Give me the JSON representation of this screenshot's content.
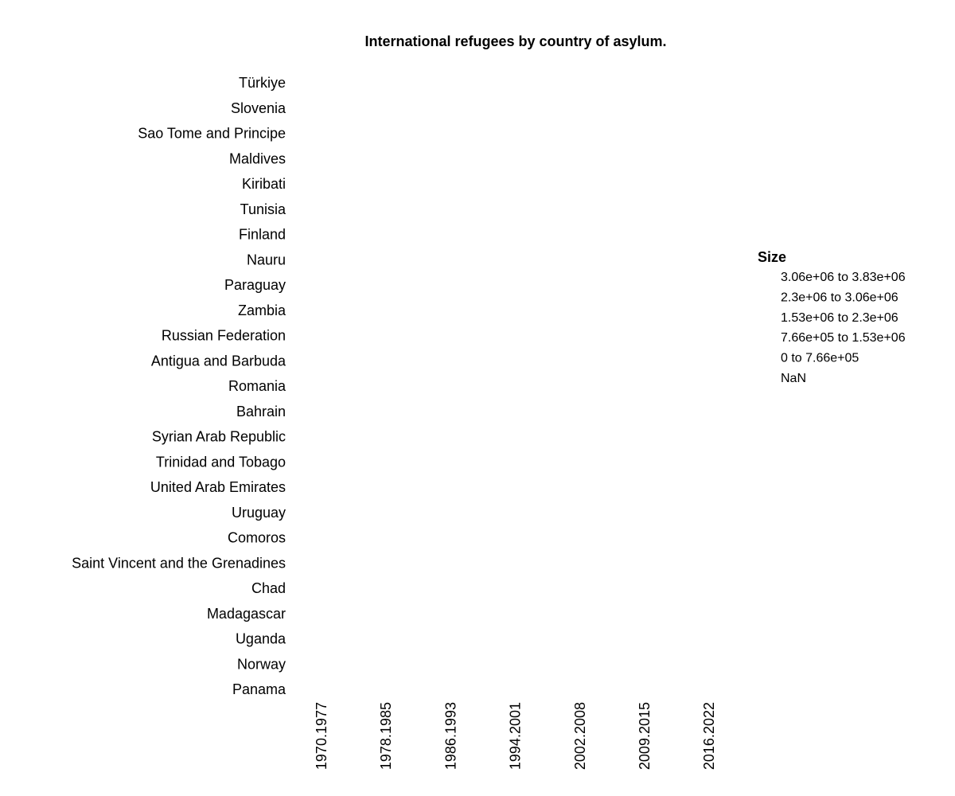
{
  "chart_data": {
    "type": "scatter",
    "title": "International refugees by country of asylum.",
    "xlabel": "",
    "ylabel": "",
    "categories": [
      "Türkiye",
      "Slovenia",
      "Sao Tome and Principe",
      "Maldives",
      "Kiribati",
      "Tunisia",
      "Finland",
      "Nauru",
      "Paraguay",
      "Zambia",
      "Russian Federation",
      "Antigua and Barbuda",
      "Romania",
      "Bahrain",
      "Syrian Arab Republic",
      "Trinidad and Tobago",
      "United Arab Emirates",
      "Uruguay",
      "Comoros",
      "Saint Vincent and the Grenadines",
      "Chad",
      "Madagascar",
      "Uganda",
      "Norway",
      "Panama"
    ],
    "x_categories": [
      "1970.1977",
      "1978.1985",
      "1986.1993",
      "1994.2001",
      "2002.2008",
      "2009.2015",
      "2016.2022"
    ],
    "points": [],
    "grid": false,
    "legend": {
      "title": "Size",
      "placement": "right",
      "entries": [
        "3.06e+06 to 3.83e+06",
        "2.3e+06 to 3.06e+06",
        "1.53e+06 to 2.3e+06",
        "7.66e+05 to 1.53e+06",
        "0 to 7.66e+05",
        "NaN"
      ]
    }
  }
}
